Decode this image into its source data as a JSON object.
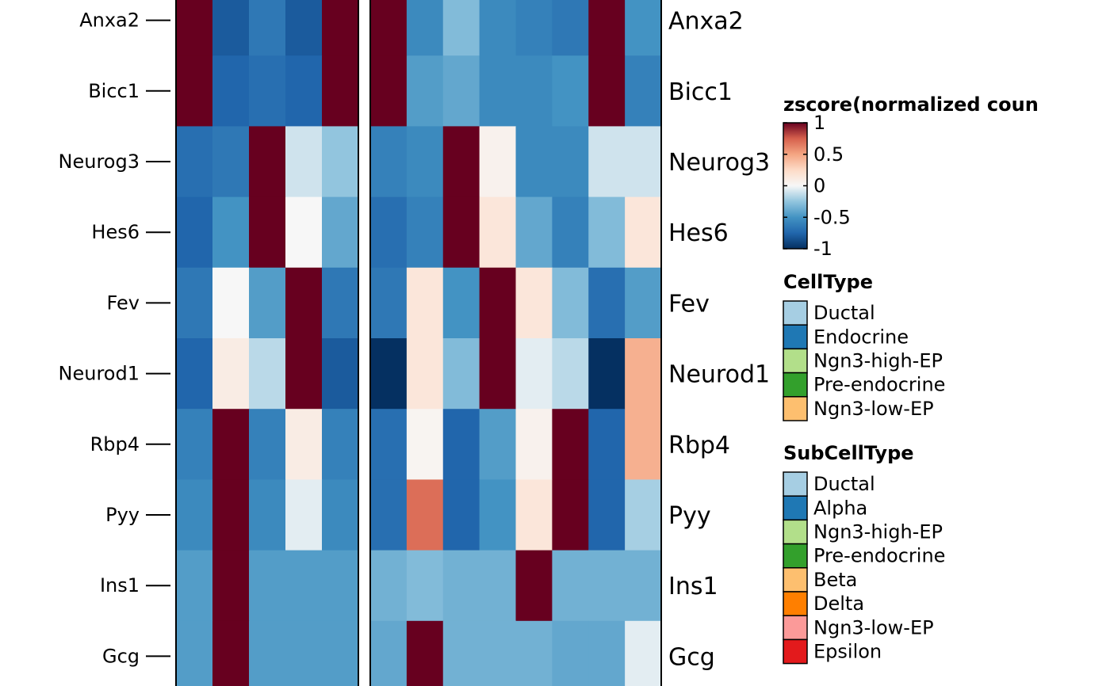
{
  "chart_data": {
    "type": "heatmap",
    "rows": [
      "Anxa2",
      "Bicc1",
      "Neurog3",
      "Hes6",
      "Fev",
      "Neurod1",
      "Rbp4",
      "Pyy",
      "Ins1",
      "Gcg"
    ],
    "panels": [
      {
        "columns": 5,
        "values": [
          [
            1,
            -0.8,
            -0.65,
            -0.8,
            1
          ],
          [
            1,
            -0.75,
            -0.7,
            -0.75,
            1
          ],
          [
            -0.7,
            -0.65,
            1,
            -0.1,
            -0.25
          ],
          [
            -0.75,
            -0.5,
            1,
            0,
            -0.4
          ],
          [
            -0.65,
            0,
            -0.45,
            1,
            -0.65
          ],
          [
            -0.75,
            0.1,
            -0.15,
            1,
            -0.8
          ],
          [
            -0.6,
            1,
            -0.6,
            0.1,
            -0.6
          ],
          [
            -0.55,
            1,
            -0.55,
            -0.05,
            -0.55
          ],
          [
            -0.45,
            1,
            -0.45,
            -0.45,
            -0.45
          ],
          [
            -0.45,
            1,
            -0.45,
            -0.45,
            -0.45
          ]
        ]
      },
      {
        "columns": 8,
        "values": [
          [
            1,
            -0.55,
            -0.3,
            -0.55,
            -0.6,
            -0.65,
            1,
            -0.5
          ],
          [
            1,
            -0.45,
            -0.4,
            -0.55,
            -0.55,
            -0.5,
            1,
            -0.6
          ],
          [
            -0.6,
            -0.55,
            1,
            0.05,
            -0.55,
            -0.55,
            -0.1,
            -0.1
          ],
          [
            -0.7,
            -0.6,
            1,
            0.15,
            -0.4,
            -0.6,
            -0.3,
            0.15
          ],
          [
            -0.65,
            0.15,
            -0.5,
            1,
            0.15,
            -0.3,
            -0.7,
            -0.45
          ],
          [
            -1,
            0.15,
            -0.3,
            1,
            -0.05,
            -0.15,
            -1,
            0.45
          ],
          [
            -0.7,
            0.03,
            -0.75,
            -0.45,
            0.05,
            1,
            -0.75,
            0.45
          ],
          [
            -0.7,
            0.7,
            -0.75,
            -0.5,
            0.15,
            1,
            -0.75,
            -0.2
          ],
          [
            -0.35,
            -0.3,
            -0.35,
            -0.35,
            1,
            -0.35,
            -0.35,
            -0.35
          ],
          [
            -0.4,
            1,
            -0.35,
            -0.35,
            -0.35,
            -0.4,
            -0.4,
            -0.05
          ]
        ]
      }
    ],
    "color_scale": {
      "stops": [
        {
          "value": -1,
          "color": "#053061"
        },
        {
          "value": -0.75,
          "color": "#2166ac"
        },
        {
          "value": -0.5,
          "color": "#4393c3"
        },
        {
          "value": -0.25,
          "color": "#92c5de"
        },
        {
          "value": 0,
          "color": "#f7f7f7"
        },
        {
          "value": 0.25,
          "color": "#fddbc7"
        },
        {
          "value": 0.5,
          "color": "#f4a582"
        },
        {
          "value": 0.75,
          "color": "#d6604d"
        },
        {
          "value": 1,
          "color": "#67001f"
        }
      ]
    },
    "legends": {
      "zscore": {
        "title": "zscore(normalized coun",
        "ticks": [
          {
            "value": 1,
            "label": "1"
          },
          {
            "value": 0.5,
            "label": "0.5"
          },
          {
            "value": 0,
            "label": "0"
          },
          {
            "value": -0.5,
            "label": "-0.5"
          },
          {
            "value": -1,
            "label": "-1"
          }
        ]
      },
      "celltype": {
        "title": "CellType",
        "items": [
          {
            "label": "Ductal",
            "color": "#a6cee3"
          },
          {
            "label": "Endocrine",
            "color": "#1f78b4"
          },
          {
            "label": "Ngn3-high-EP",
            "color": "#b2df8a"
          },
          {
            "label": "Pre-endocrine",
            "color": "#33a02c"
          },
          {
            "label": "Ngn3-low-EP",
            "color": "#fdbf6f"
          }
        ]
      },
      "subcelltype": {
        "title": "SubCellType",
        "items": [
          {
            "label": "Ductal",
            "color": "#a6cee3"
          },
          {
            "label": "Alpha",
            "color": "#1f78b4"
          },
          {
            "label": "Ngn3-high-EP",
            "color": "#b2df8a"
          },
          {
            "label": "Pre-endocrine",
            "color": "#33a02c"
          },
          {
            "label": "Beta",
            "color": "#fdbf6f"
          },
          {
            "label": "Delta",
            "color": "#ff7f00"
          },
          {
            "label": "Ngn3-low-EP",
            "color": "#fb9a99"
          },
          {
            "label": "Epsilon",
            "color": "#e31a1c"
          }
        ]
      }
    }
  }
}
